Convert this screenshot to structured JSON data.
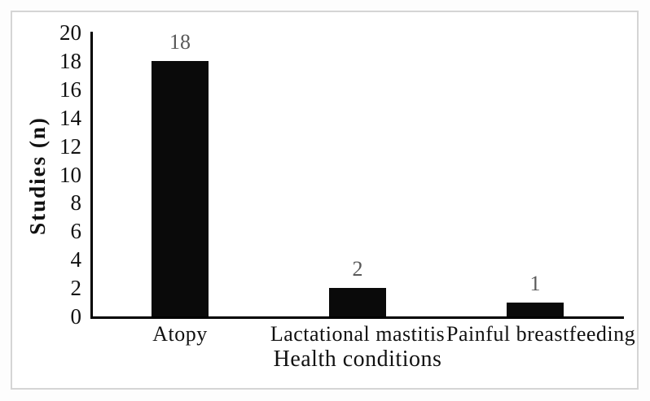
{
  "chart_data": {
    "type": "bar",
    "title": "",
    "xlabel": "Health conditions",
    "ylabel": "Studies (n)",
    "categories": [
      "Atopy",
      "Lactational mastitis",
      "Painful breastfeeding"
    ],
    "values": [
      18,
      2,
      1
    ],
    "data_labels": [
      "18",
      "2",
      "1"
    ],
    "ylim": [
      0,
      20
    ],
    "ytick_step": 2,
    "yticks": [
      0,
      2,
      4,
      6,
      8,
      10,
      12,
      14,
      16,
      18,
      20
    ],
    "grid": false,
    "legend_position": "none",
    "bar_color": "#0a0a0a",
    "data_label_color": "#595959",
    "axis_color": "#000000",
    "text_color": "#111111"
  },
  "frame": {
    "border_color": "#d5d5d5",
    "background": "#ffffff"
  }
}
